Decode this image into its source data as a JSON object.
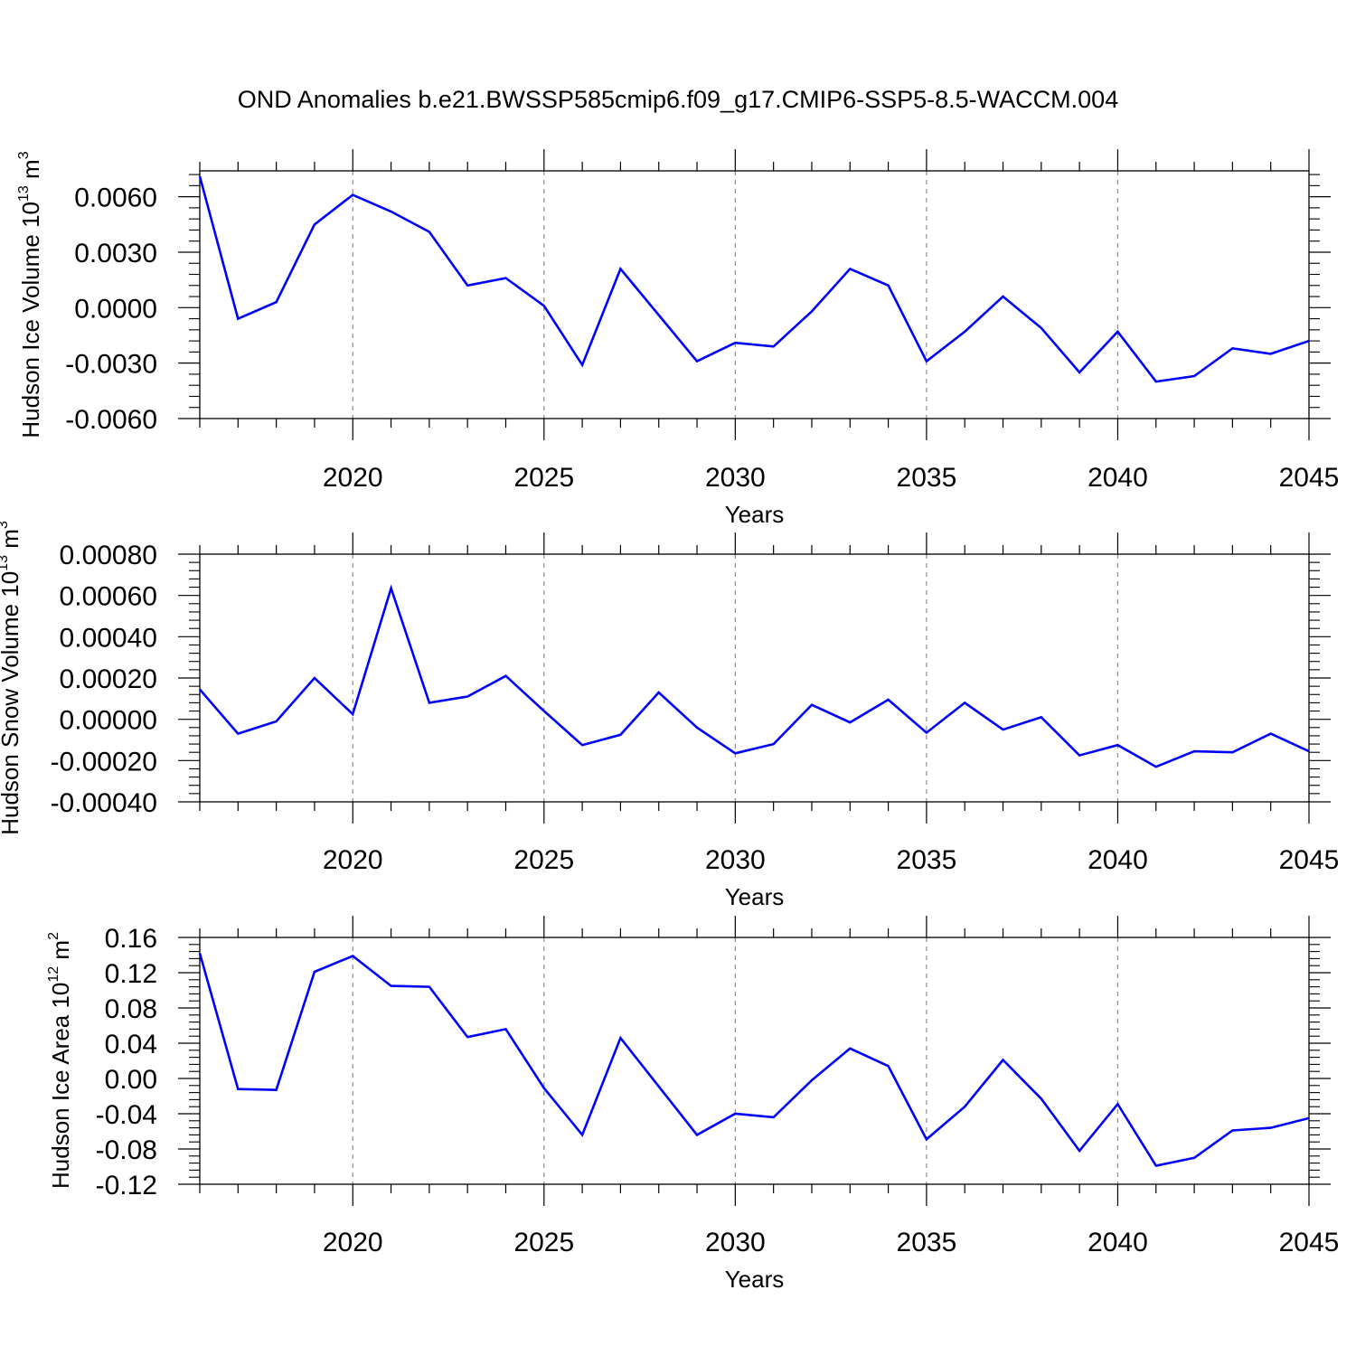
{
  "title": "OND Anomalies b.e21.BWSSP585cmip6.f09_g17.CMIP6-SSP5-8.5-WACCM.004",
  "colors": {
    "series": "#0000ff",
    "axis": "#000000",
    "grid": "#8c8c8c"
  },
  "chart_data": [
    {
      "type": "line",
      "ylabel": "Hudson Ice Volume 10",
      "ylabel_exp": "13",
      "ylabel_unit": " m",
      "ylabel_unit_exp": "3",
      "xlabel": "Years",
      "xlim": [
        2016,
        2045
      ],
      "ylim": [
        -0.006,
        0.0074
      ],
      "xticks": [
        2020,
        2025,
        2030,
        2035,
        2040,
        2045
      ],
      "xtick_labels": [
        "2020",
        "2025",
        "2030",
        "2035",
        "2040",
        "2045"
      ],
      "yticks": [
        0.006,
        0.003,
        0.0,
        -0.003,
        -0.006
      ],
      "ytick_labels": [
        "0.0060",
        "0.0030",
        "0.0000",
        "-0.0030",
        "-0.0060"
      ],
      "grid": "vertical dashed at major x ticks",
      "series": [
        {
          "x": [
            2016,
            2017,
            2018,
            2019,
            2020,
            2021,
            2022,
            2023,
            2024,
            2025,
            2026,
            2027,
            2028,
            2029,
            2030,
            2031,
            2032,
            2033,
            2034,
            2035,
            2036,
            2037,
            2038,
            2039,
            2040,
            2041,
            2042,
            2043,
            2044,
            2045
          ],
          "values": [
            0.0071,
            -0.0006,
            0.0003,
            0.0045,
            0.0061,
            0.0052,
            0.0041,
            0.0012,
            0.0016,
            0.0001,
            -0.0031,
            0.0021,
            -0.0004,
            -0.0029,
            -0.0019,
            -0.0021,
            -0.0002,
            0.0021,
            0.0012,
            -0.0029,
            -0.0013,
            0.0006,
            -0.0011,
            -0.0035,
            -0.0013,
            -0.004,
            -0.0037,
            -0.0022,
            -0.0025,
            -0.0018
          ]
        }
      ]
    },
    {
      "type": "line",
      "ylabel": "Hudson Snow Volume 10",
      "ylabel_exp": "13",
      "ylabel_unit": " m",
      "ylabel_unit_exp": "3",
      "xlabel": "Years",
      "xlim": [
        2016,
        2045
      ],
      "ylim": [
        -0.0004,
        0.0008
      ],
      "xticks": [
        2020,
        2025,
        2030,
        2035,
        2040,
        2045
      ],
      "xtick_labels": [
        "2020",
        "2025",
        "2030",
        "2035",
        "2040",
        "2045"
      ],
      "yticks": [
        0.0008,
        0.0006,
        0.0004,
        0.0002,
        0.0,
        -0.0002,
        -0.0004
      ],
      "ytick_labels": [
        "0.00080",
        "0.00060",
        "0.00040",
        "0.00020",
        "0.00000",
        "-0.00020",
        "-0.00040"
      ],
      "grid": "vertical dashed at major x ticks",
      "series": [
        {
          "x": [
            2016,
            2017,
            2018,
            2019,
            2020,
            2021,
            2022,
            2023,
            2024,
            2025,
            2026,
            2027,
            2028,
            2029,
            2030,
            2031,
            2032,
            2033,
            2034,
            2035,
            2036,
            2037,
            2038,
            2039,
            2040,
            2041,
            2042,
            2043,
            2044,
            2045
          ],
          "values": [
            0.000145,
            -7e-05,
            -1e-05,
            0.0002,
            2.5e-05,
            0.000635,
            8e-05,
            0.00011,
            0.00021,
            4e-05,
            -0.000125,
            -7.5e-05,
            0.00013,
            -4e-05,
            -0.000165,
            -0.00012,
            7e-05,
            -1.5e-05,
            9.5e-05,
            -6.5e-05,
            8e-05,
            -5e-05,
            1e-05,
            -0.000175,
            -0.000125,
            -0.00023,
            -0.000155,
            -0.00016,
            -7e-05,
            -0.000155
          ]
        }
      ]
    },
    {
      "type": "line",
      "ylabel": "Hudson Ice Area 10",
      "ylabel_exp": "12",
      "ylabel_unit": " m",
      "ylabel_unit_exp": "2",
      "xlabel": "Years",
      "xlim": [
        2016,
        2045
      ],
      "ylim": [
        -0.12,
        0.16
      ],
      "xticks": [
        2020,
        2025,
        2030,
        2035,
        2040,
        2045
      ],
      "xtick_labels": [
        "2020",
        "2025",
        "2030",
        "2035",
        "2040",
        "2045"
      ],
      "yticks": [
        0.16,
        0.12,
        0.08,
        0.04,
        0.0,
        -0.04,
        -0.08,
        -0.12
      ],
      "ytick_labels": [
        "0.16",
        "0.12",
        "0.08",
        "0.04",
        "0.00",
        "-0.04",
        "-0.08",
        "-0.12"
      ],
      "grid": "vertical dashed at major x ticks",
      "series": [
        {
          "x": [
            2016,
            2017,
            2018,
            2019,
            2020,
            2021,
            2022,
            2023,
            2024,
            2025,
            2026,
            2027,
            2028,
            2029,
            2030,
            2031,
            2032,
            2033,
            2034,
            2035,
            2036,
            2037,
            2038,
            2039,
            2040,
            2041,
            2042,
            2043,
            2044,
            2045
          ],
          "values": [
            0.142,
            -0.012,
            -0.013,
            0.121,
            0.139,
            0.105,
            0.104,
            0.047,
            0.056,
            -0.011,
            -0.064,
            0.046,
            -0.009,
            -0.064,
            -0.04,
            -0.044,
            -0.002,
            0.034,
            0.014,
            -0.069,
            -0.032,
            0.021,
            -0.023,
            -0.082,
            -0.029,
            -0.099,
            -0.09,
            -0.059,
            -0.056,
            -0.045
          ]
        }
      ]
    }
  ]
}
